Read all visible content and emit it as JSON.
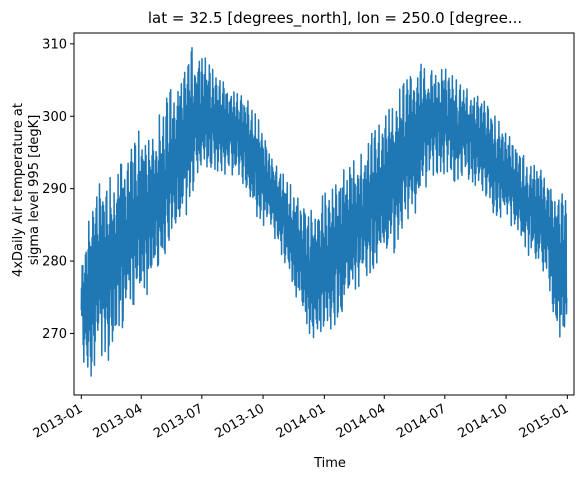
{
  "chart_data": {
    "type": "line",
    "title": "lat = 32.5 [degrees_north], lon = 250.0 [degree...",
    "xlabel": "Time",
    "ylabel_lines": [
      "4xDaily Air temperature at",
      "sigma level 995 [degK]"
    ],
    "grid": false,
    "legend": "none",
    "line_color": "#1f77b4",
    "xlim": [
      "2012-12-21",
      "2015-01-11"
    ],
    "ylim": [
      261.5,
      311.5
    ],
    "x_ticks": [
      {
        "date": "2013-01-01",
        "label": "2013-01"
      },
      {
        "date": "2013-04-01",
        "label": "2013-04"
      },
      {
        "date": "2013-07-01",
        "label": "2013-07"
      },
      {
        "date": "2013-10-01",
        "label": "2013-10"
      },
      {
        "date": "2014-01-01",
        "label": "2014-01"
      },
      {
        "date": "2014-04-01",
        "label": "2014-04"
      },
      {
        "date": "2014-07-01",
        "label": "2014-07"
      },
      {
        "date": "2014-10-01",
        "label": "2014-10"
      },
      {
        "date": "2015-01-01",
        "label": "2015-01"
      }
    ],
    "y_ticks": [
      270,
      280,
      290,
      300,
      310
    ],
    "series": [
      {
        "x": [
          "2013-01-01",
          "2013-01-15",
          "2013-02-01",
          "2013-02-15",
          "2013-03-01",
          "2013-03-15",
          "2013-04-01",
          "2013-04-15",
          "2013-05-01",
          "2013-05-15",
          "2013-06-01",
          "2013-06-15",
          "2013-07-01",
          "2013-07-15",
          "2013-08-01",
          "2013-08-15",
          "2013-09-01",
          "2013-09-15",
          "2013-10-01",
          "2013-10-15",
          "2013-11-01",
          "2013-11-15",
          "2013-12-01",
          "2013-12-15",
          "2014-01-01",
          "2014-01-15",
          "2014-02-01",
          "2014-02-15",
          "2014-03-01",
          "2014-03-15",
          "2014-04-01",
          "2014-04-15",
          "2014-05-01",
          "2014-05-15",
          "2014-06-01",
          "2014-06-15",
          "2014-07-01",
          "2014-07-15",
          "2014-08-01",
          "2014-08-15",
          "2014-09-01",
          "2014-09-15",
          "2014-10-01",
          "2014-10-15",
          "2014-11-01",
          "2014-11-15",
          "2014-12-01",
          "2014-12-15",
          "2014-12-31"
        ],
        "y_min": [
          266.5,
          264,
          267,
          266,
          270,
          273,
          276,
          275,
          279,
          282,
          284,
          289,
          292,
          293,
          292,
          292,
          290,
          287,
          285,
          284,
          280,
          276,
          272,
          268,
          269,
          271,
          273,
          276,
          277,
          279,
          279,
          281,
          284,
          286,
          290,
          292,
          292,
          291,
          292,
          290,
          289,
          286,
          286,
          284,
          281,
          280,
          277,
          270,
          267
        ],
        "y_max": [
          279,
          288,
          292,
          291.5,
          294,
          296,
          298.5,
          298,
          301,
          304,
          306,
          309.5,
          309,
          307,
          305,
          304,
          303.5,
          301,
          298.5,
          295,
          292,
          290,
          288,
          287,
          290,
          291,
          293,
          294,
          295,
          298,
          300,
          302,
          305,
          307.5,
          307,
          306,
          307,
          305.5,
          304,
          303,
          302,
          300,
          298,
          296,
          294,
          293,
          292,
          291,
          288
        ]
      }
    ]
  }
}
